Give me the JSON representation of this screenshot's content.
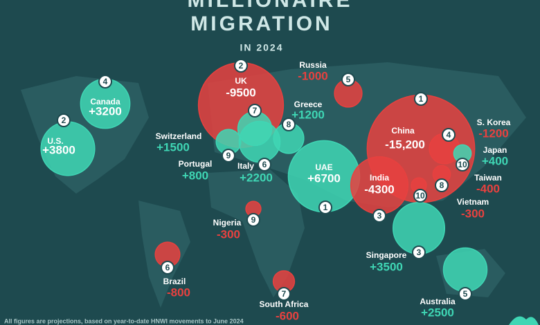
{
  "title_lines": [
    "MILLIONAIRE",
    "MIGRATION"
  ],
  "subtitle": "IN 2024",
  "footnote": "All figures are projections, based on year-to-date HNWI movements to June 2024",
  "chart_data": {
    "type": "bubble",
    "categories": [
      "China",
      "UK",
      "UAE",
      "India",
      "U.S.",
      "Singapore",
      "Canada",
      "Australia",
      "Italy",
      "Switzerland",
      "Greece",
      "S. Korea",
      "Russia",
      "Portugal",
      "Brazil",
      "South Africa",
      "Japan",
      "Taiwan",
      "Nigeria",
      "Vietnam"
    ],
    "values": [
      -15200,
      -9500,
      6700,
      -4300,
      3800,
      3500,
      3200,
      2500,
      2200,
      1500,
      1200,
      -1200,
      -1000,
      800,
      -800,
      -600,
      400,
      -400,
      -300,
      -300
    ],
    "value_labels": [
      "-15,200",
      "-9500",
      "+6700",
      "-4300",
      "+3800",
      "+3500",
      "+3200",
      "+2500",
      "+2200",
      "+1500",
      "+1200",
      "-1200",
      "-1000",
      "+800",
      "-800",
      "-600",
      "+400",
      "-400",
      "-300",
      "-300"
    ],
    "ranks": [
      1,
      2,
      1,
      3,
      2,
      3,
      4,
      5,
      6,
      7,
      8,
      4,
      5,
      9,
      6,
      7,
      10,
      8,
      9,
      10
    ],
    "positive_color": "#3fd6b4",
    "negative_color": "#e8413f"
  }
}
